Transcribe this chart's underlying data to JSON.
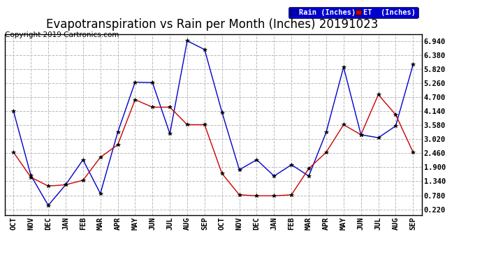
{
  "title": "Evapotranspiration vs Rain per Month (Inches) 20191023",
  "copyright": "Copyright 2019 Cartronics.com",
  "labels": [
    "OCT",
    "NOV",
    "DEC",
    "JAN",
    "FEB",
    "MAR",
    "APR",
    "MAY",
    "JUN",
    "JUL",
    "AUG",
    "SEP",
    "OCT",
    "NOV",
    "DEC",
    "JAN",
    "FEB",
    "MAR",
    "APR",
    "MAY",
    "JUN",
    "JUL",
    "AUG",
    "SEP"
  ],
  "rain": [
    4.14,
    1.57,
    0.38,
    1.2,
    2.2,
    0.85,
    3.3,
    5.3,
    5.28,
    3.24,
    6.95,
    6.6,
    4.1,
    1.8,
    2.2,
    1.55,
    2.0,
    1.55,
    3.3,
    5.9,
    3.2,
    3.08,
    3.55,
    6.0
  ],
  "et": [
    2.5,
    1.5,
    1.15,
    1.2,
    1.38,
    2.3,
    2.8,
    4.6,
    4.3,
    4.3,
    3.6,
    3.6,
    1.65,
    0.8,
    0.76,
    0.76,
    0.8,
    1.85,
    2.5,
    3.6,
    3.2,
    4.8,
    4.0,
    2.5
  ],
  "rain_color": "#0000cc",
  "et_color": "#cc0000",
  "bg_color": "#ffffff",
  "grid_color": "#bbbbbb",
  "yticks": [
    0.22,
    0.78,
    1.34,
    1.9,
    2.46,
    3.02,
    3.58,
    4.14,
    4.7,
    5.26,
    5.82,
    6.38,
    6.94
  ],
  "ymin": 0.0,
  "ymax": 7.22,
  "title_fontsize": 12,
  "copyright_fontsize": 7.5,
  "tick_fontsize": 7.5,
  "legend_rain": "Rain (Inches)",
  "legend_et": "ET  (Inches)"
}
